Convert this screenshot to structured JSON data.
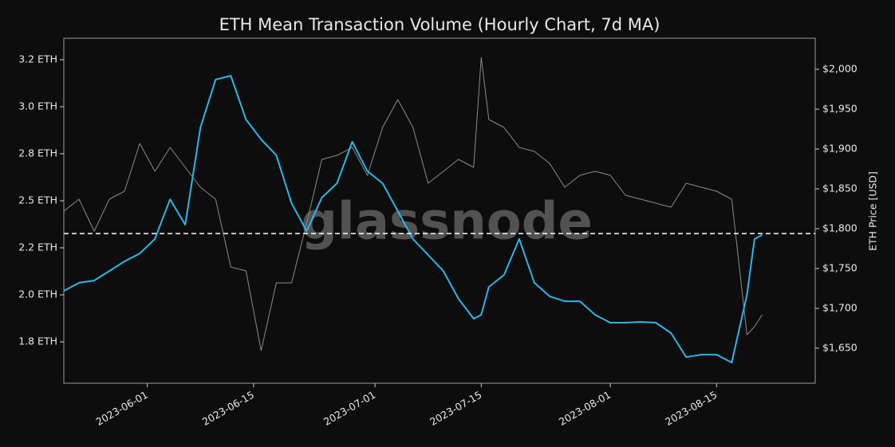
{
  "chart_data": {
    "type": "line",
    "title": "ETH Mean Transaction Volume (Hourly Chart, 7d MA)",
    "y2_label": "ETH Price [USD]",
    "watermark": "glassnode",
    "x": [
      "2023-05-21",
      "2023-05-23",
      "2023-05-25",
      "2023-05-27",
      "2023-05-29",
      "2023-05-31",
      "2023-06-02",
      "2023-06-04",
      "2023-06-06",
      "2023-06-08",
      "2023-06-10",
      "2023-06-12",
      "2023-06-14",
      "2023-06-16",
      "2023-06-18",
      "2023-06-20",
      "2023-06-22",
      "2023-06-24",
      "2023-06-26",
      "2023-06-28",
      "2023-06-30",
      "2023-07-02",
      "2023-07-04",
      "2023-07-06",
      "2023-07-08",
      "2023-07-10",
      "2023-07-12",
      "2023-07-14",
      "2023-07-15",
      "2023-07-16",
      "2023-07-18",
      "2023-07-20",
      "2023-07-22",
      "2023-07-24",
      "2023-07-26",
      "2023-07-28",
      "2023-07-30",
      "2023-08-01",
      "2023-08-03",
      "2023-08-05",
      "2023-08-07",
      "2023-08-09",
      "2023-08-11",
      "2023-08-13",
      "2023-08-15",
      "2023-08-17",
      "2023-08-19",
      "2023-08-20",
      "2023-08-21"
    ],
    "xlim": [
      "2023-05-21",
      "2023-08-28"
    ],
    "xticks": [
      "2023-06-01",
      "2023-06-15",
      "2023-07-01",
      "2023-07-15",
      "2023-08-01",
      "2023-08-15"
    ],
    "ylim": [
      1.53,
      3.364
    ],
    "yticks": [
      {
        "value": 3.25,
        "label": "3.2 ETH"
      },
      {
        "value": 3.0,
        "label": "3.0 ETH"
      },
      {
        "value": 2.75,
        "label": "2.8 ETH"
      },
      {
        "value": 2.5,
        "label": "2.5 ETH"
      },
      {
        "value": 2.25,
        "label": "2.2 ETH"
      },
      {
        "value": 2.0,
        "label": "2.0 ETH"
      },
      {
        "value": 1.75,
        "label": "1.8 ETH"
      }
    ],
    "y2lim": [
      1606,
      2039
    ],
    "y2ticks": [
      {
        "value": 2000,
        "label": "$2,000"
      },
      {
        "value": 1950,
        "label": "$1,950"
      },
      {
        "value": 1900,
        "label": "$1,900"
      },
      {
        "value": 1850,
        "label": "$1,850"
      },
      {
        "value": 1800,
        "label": "$1,800"
      },
      {
        "value": 1750,
        "label": "$1,750"
      },
      {
        "value": 1700,
        "label": "$1,700"
      },
      {
        "value": 1650,
        "label": "$1,650"
      }
    ],
    "reference_line": 2.326,
    "series": [
      {
        "axis": "y2",
        "color": "#8a8a8a",
        "values": [
          1822,
          1837,
          1797,
          1837,
          1847,
          1907,
          1872,
          1902,
          1877,
          1852,
          1837,
          1752,
          1747,
          1647,
          1732,
          1732,
          1807,
          1887,
          1892,
          1902,
          1867,
          1927,
          1962,
          1927,
          1857,
          1872,
          1887,
          1877,
          2015,
          1937,
          1927,
          1902,
          1897,
          1882,
          1852,
          1867,
          1872,
          1867,
          1842,
          1837,
          1832,
          1827,
          1857,
          1852,
          1847,
          1837,
          1667,
          1677,
          1692
        ]
      },
      {
        "axis": "y",
        "color": "#2bb5ea",
        "values": [
          2.021,
          2.064,
          2.076,
          2.127,
          2.178,
          2.22,
          2.297,
          2.508,
          2.373,
          2.89,
          3.144,
          3.165,
          2.932,
          2.826,
          2.742,
          2.487,
          2.339,
          2.517,
          2.593,
          2.814,
          2.657,
          2.593,
          2.445,
          2.297,
          2.212,
          2.127,
          1.979,
          1.873,
          1.894,
          2.042,
          2.106,
          2.297,
          2.064,
          1.992,
          1.966,
          1.966,
          1.894,
          1.852,
          1.852,
          1.856,
          1.852,
          1.797,
          1.669,
          1.682,
          1.682,
          1.64,
          2.0,
          2.297,
          2.318
        ]
      }
    ]
  }
}
